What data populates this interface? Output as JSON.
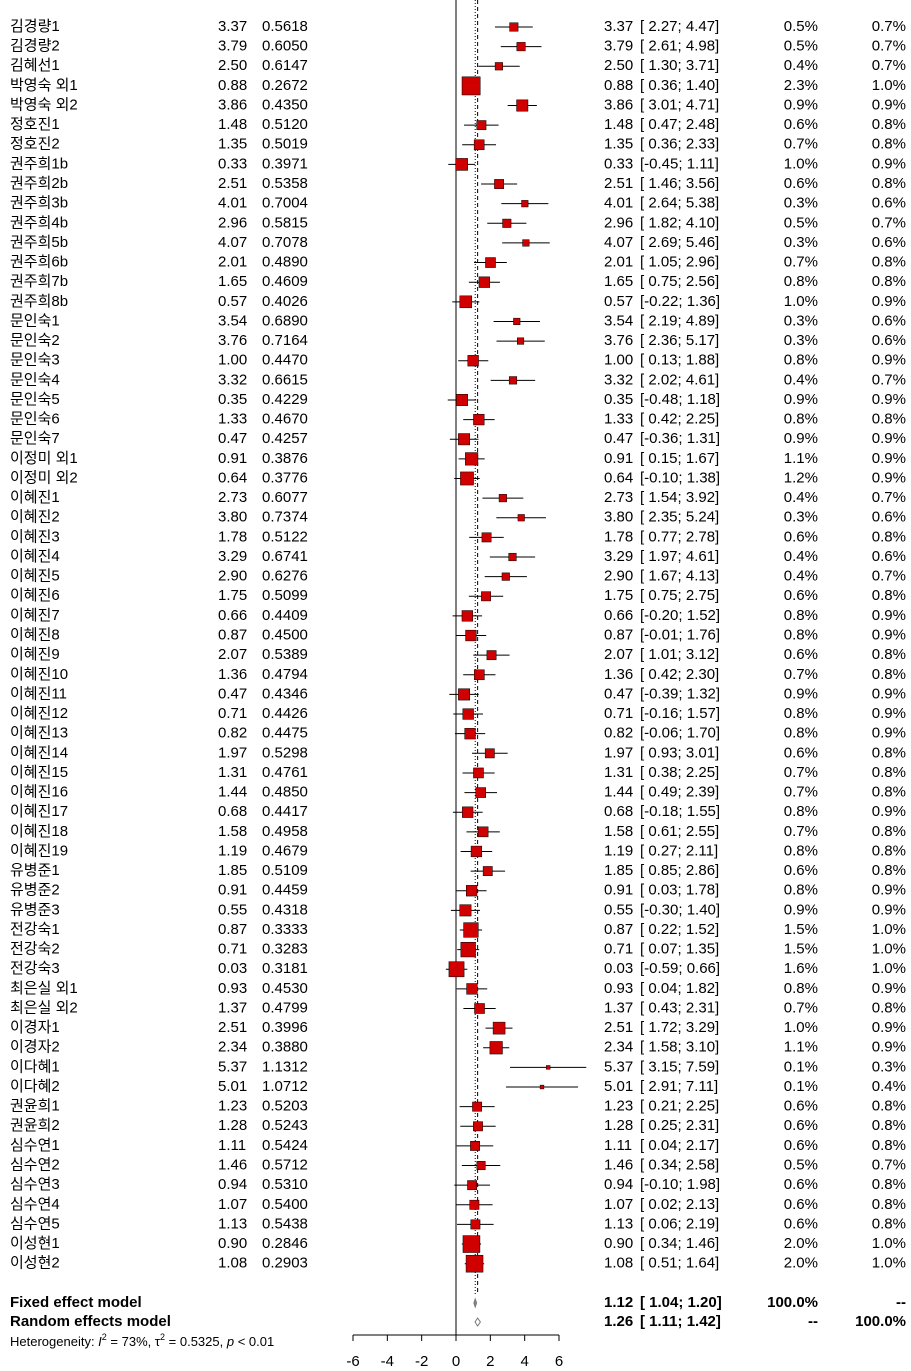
{
  "chart_data": {
    "type": "forest",
    "xlim": [
      -6,
      6
    ],
    "xticks": [
      -6,
      -4,
      -2,
      0,
      2,
      4,
      6
    ],
    "color": "#d00000",
    "rows": [
      {
        "name": "김경량1",
        "te": 3.37,
        "te_label": "3.37",
        "se": "0.5618",
        "lower": 2.27,
        "upper": 4.47,
        "ci": "[ 2.27; 4.47]",
        "w_fixed": 0.5,
        "w_fixed_label": "0.5%",
        "w_random": "0.7%"
      },
      {
        "name": "김경량2",
        "te": 3.79,
        "te_label": "3.79",
        "se": "0.6050",
        "lower": 2.61,
        "upper": 4.98,
        "ci": "[ 2.61; 4.98]",
        "w_fixed": 0.5,
        "w_fixed_label": "0.5%",
        "w_random": "0.7%"
      },
      {
        "name": "김혜선1",
        "te": 2.5,
        "te_label": "2.50",
        "se": "0.6147",
        "lower": 1.3,
        "upper": 3.71,
        "ci": "[ 1.30; 3.71]",
        "w_fixed": 0.4,
        "w_fixed_label": "0.4%",
        "w_random": "0.7%"
      },
      {
        "name": "박영숙 외1",
        "te": 0.88,
        "te_label": "0.88",
        "se": "0.2672",
        "lower": 0.36,
        "upper": 1.4,
        "ci": "[ 0.36; 1.40]",
        "w_fixed": 2.3,
        "w_fixed_label": "2.3%",
        "w_random": "1.0%"
      },
      {
        "name": "박영숙 외2",
        "te": 3.86,
        "te_label": "3.86",
        "se": "0.4350",
        "lower": 3.01,
        "upper": 4.71,
        "ci": "[ 3.01; 4.71]",
        "w_fixed": 0.9,
        "w_fixed_label": "0.9%",
        "w_random": "0.9%"
      },
      {
        "name": "정호진1",
        "te": 1.48,
        "te_label": "1.48",
        "se": "0.5120",
        "lower": 0.47,
        "upper": 2.48,
        "ci": "[ 0.47; 2.48]",
        "w_fixed": 0.6,
        "w_fixed_label": "0.6%",
        "w_random": "0.8%"
      },
      {
        "name": "정호진2",
        "te": 1.35,
        "te_label": "1.35",
        "se": "0.5019",
        "lower": 0.36,
        "upper": 2.33,
        "ci": "[ 0.36; 2.33]",
        "w_fixed": 0.7,
        "w_fixed_label": "0.7%",
        "w_random": "0.8%"
      },
      {
        "name": "권주희1b",
        "te": 0.33,
        "te_label": "0.33",
        "se": "0.3971",
        "lower": -0.45,
        "upper": 1.11,
        "ci": "[-0.45; 1.11]",
        "w_fixed": 1.0,
        "w_fixed_label": "1.0%",
        "w_random": "0.9%"
      },
      {
        "name": "권주희2b",
        "te": 2.51,
        "te_label": "2.51",
        "se": "0.5358",
        "lower": 1.46,
        "upper": 3.56,
        "ci": "[ 1.46; 3.56]",
        "w_fixed": 0.6,
        "w_fixed_label": "0.6%",
        "w_random": "0.8%"
      },
      {
        "name": "권주희3b",
        "te": 4.01,
        "te_label": "4.01",
        "se": "0.7004",
        "lower": 2.64,
        "upper": 5.38,
        "ci": "[ 2.64; 5.38]",
        "w_fixed": 0.3,
        "w_fixed_label": "0.3%",
        "w_random": "0.6%"
      },
      {
        "name": "권주희4b",
        "te": 2.96,
        "te_label": "2.96",
        "se": "0.5815",
        "lower": 1.82,
        "upper": 4.1,
        "ci": "[ 1.82; 4.10]",
        "w_fixed": 0.5,
        "w_fixed_label": "0.5%",
        "w_random": "0.7%"
      },
      {
        "name": "권주희5b",
        "te": 4.07,
        "te_label": "4.07",
        "se": "0.7078",
        "lower": 2.69,
        "upper": 5.46,
        "ci": "[ 2.69; 5.46]",
        "w_fixed": 0.3,
        "w_fixed_label": "0.3%",
        "w_random": "0.6%"
      },
      {
        "name": "권주희6b",
        "te": 2.01,
        "te_label": "2.01",
        "se": "0.4890",
        "lower": 1.05,
        "upper": 2.96,
        "ci": "[ 1.05; 2.96]",
        "w_fixed": 0.7,
        "w_fixed_label": "0.7%",
        "w_random": "0.8%"
      },
      {
        "name": "권주희7b",
        "te": 1.65,
        "te_label": "1.65",
        "se": "0.4609",
        "lower": 0.75,
        "upper": 2.56,
        "ci": "[ 0.75; 2.56]",
        "w_fixed": 0.8,
        "w_fixed_label": "0.8%",
        "w_random": "0.8%"
      },
      {
        "name": "권주희8b",
        "te": 0.57,
        "te_label": "0.57",
        "se": "0.4026",
        "lower": -0.22,
        "upper": 1.36,
        "ci": "[-0.22; 1.36]",
        "w_fixed": 1.0,
        "w_fixed_label": "1.0%",
        "w_random": "0.9%"
      },
      {
        "name": "문인숙1",
        "te": 3.54,
        "te_label": "3.54",
        "se": "0.6890",
        "lower": 2.19,
        "upper": 4.89,
        "ci": "[ 2.19; 4.89]",
        "w_fixed": 0.3,
        "w_fixed_label": "0.3%",
        "w_random": "0.6%"
      },
      {
        "name": "문인숙2",
        "te": 3.76,
        "te_label": "3.76",
        "se": "0.7164",
        "lower": 2.36,
        "upper": 5.17,
        "ci": "[ 2.36; 5.17]",
        "w_fixed": 0.3,
        "w_fixed_label": "0.3%",
        "w_random": "0.6%"
      },
      {
        "name": "문인숙3",
        "te": 1.0,
        "te_label": "1.00",
        "se": "0.4470",
        "lower": 0.13,
        "upper": 1.88,
        "ci": "[ 0.13; 1.88]",
        "w_fixed": 0.8,
        "w_fixed_label": "0.8%",
        "w_random": "0.9%"
      },
      {
        "name": "문인숙4",
        "te": 3.32,
        "te_label": "3.32",
        "se": "0.6615",
        "lower": 2.02,
        "upper": 4.61,
        "ci": "[ 2.02; 4.61]",
        "w_fixed": 0.4,
        "w_fixed_label": "0.4%",
        "w_random": "0.7%"
      },
      {
        "name": "문인숙5",
        "te": 0.35,
        "te_label": "0.35",
        "se": "0.4229",
        "lower": -0.48,
        "upper": 1.18,
        "ci": "[-0.48; 1.18]",
        "w_fixed": 0.9,
        "w_fixed_label": "0.9%",
        "w_random": "0.9%"
      },
      {
        "name": "문인숙6",
        "te": 1.33,
        "te_label": "1.33",
        "se": "0.4670",
        "lower": 0.42,
        "upper": 2.25,
        "ci": "[ 0.42; 2.25]",
        "w_fixed": 0.8,
        "w_fixed_label": "0.8%",
        "w_random": "0.8%"
      },
      {
        "name": "문인숙7",
        "te": 0.47,
        "te_label": "0.47",
        "se": "0.4257",
        "lower": -0.36,
        "upper": 1.31,
        "ci": "[-0.36; 1.31]",
        "w_fixed": 0.9,
        "w_fixed_label": "0.9%",
        "w_random": "0.9%"
      },
      {
        "name": "이정미 외1",
        "te": 0.91,
        "te_label": "0.91",
        "se": "0.3876",
        "lower": 0.15,
        "upper": 1.67,
        "ci": "[ 0.15; 1.67]",
        "w_fixed": 1.1,
        "w_fixed_label": "1.1%",
        "w_random": "0.9%"
      },
      {
        "name": "이정미 외2",
        "te": 0.64,
        "te_label": "0.64",
        "se": "0.3776",
        "lower": -0.1,
        "upper": 1.38,
        "ci": "[-0.10; 1.38]",
        "w_fixed": 1.2,
        "w_fixed_label": "1.2%",
        "w_random": "0.9%"
      },
      {
        "name": "이혜진1",
        "te": 2.73,
        "te_label": "2.73",
        "se": "0.6077",
        "lower": 1.54,
        "upper": 3.92,
        "ci": "[ 1.54; 3.92]",
        "w_fixed": 0.4,
        "w_fixed_label": "0.4%",
        "w_random": "0.7%"
      },
      {
        "name": "이혜진2",
        "te": 3.8,
        "te_label": "3.80",
        "se": "0.7374",
        "lower": 2.35,
        "upper": 5.24,
        "ci": "[ 2.35; 5.24]",
        "w_fixed": 0.3,
        "w_fixed_label": "0.3%",
        "w_random": "0.6%"
      },
      {
        "name": "이혜진3",
        "te": 1.78,
        "te_label": "1.78",
        "se": "0.5122",
        "lower": 0.77,
        "upper": 2.78,
        "ci": "[ 0.77; 2.78]",
        "w_fixed": 0.6,
        "w_fixed_label": "0.6%",
        "w_random": "0.8%"
      },
      {
        "name": "이혜진4",
        "te": 3.29,
        "te_label": "3.29",
        "se": "0.6741",
        "lower": 1.97,
        "upper": 4.61,
        "ci": "[ 1.97; 4.61]",
        "w_fixed": 0.4,
        "w_fixed_label": "0.4%",
        "w_random": "0.6%"
      },
      {
        "name": "이혜진5",
        "te": 2.9,
        "te_label": "2.90",
        "se": "0.6276",
        "lower": 1.67,
        "upper": 4.13,
        "ci": "[ 1.67; 4.13]",
        "w_fixed": 0.4,
        "w_fixed_label": "0.4%",
        "w_random": "0.7%"
      },
      {
        "name": "이혜진6",
        "te": 1.75,
        "te_label": "1.75",
        "se": "0.5099",
        "lower": 0.75,
        "upper": 2.75,
        "ci": "[ 0.75; 2.75]",
        "w_fixed": 0.6,
        "w_fixed_label": "0.6%",
        "w_random": "0.8%"
      },
      {
        "name": "이혜진7",
        "te": 0.66,
        "te_label": "0.66",
        "se": "0.4409",
        "lower": -0.2,
        "upper": 1.52,
        "ci": "[-0.20; 1.52]",
        "w_fixed": 0.8,
        "w_fixed_label": "0.8%",
        "w_random": "0.9%"
      },
      {
        "name": "이혜진8",
        "te": 0.87,
        "te_label": "0.87",
        "se": "0.4500",
        "lower": -0.01,
        "upper": 1.76,
        "ci": "[-0.01; 1.76]",
        "w_fixed": 0.8,
        "w_fixed_label": "0.8%",
        "w_random": "0.9%"
      },
      {
        "name": "이혜진9",
        "te": 2.07,
        "te_label": "2.07",
        "se": "0.5389",
        "lower": 1.01,
        "upper": 3.12,
        "ci": "[ 1.01; 3.12]",
        "w_fixed": 0.6,
        "w_fixed_label": "0.6%",
        "w_random": "0.8%"
      },
      {
        "name": "이혜진10",
        "te": 1.36,
        "te_label": "1.36",
        "se": "0.4794",
        "lower": 0.42,
        "upper": 2.3,
        "ci": "[ 0.42; 2.30]",
        "w_fixed": 0.7,
        "w_fixed_label": "0.7%",
        "w_random": "0.8%"
      },
      {
        "name": "이혜진11",
        "te": 0.47,
        "te_label": "0.47",
        "se": "0.4346",
        "lower": -0.39,
        "upper": 1.32,
        "ci": "[-0.39; 1.32]",
        "w_fixed": 0.9,
        "w_fixed_label": "0.9%",
        "w_random": "0.9%"
      },
      {
        "name": "이혜진12",
        "te": 0.71,
        "te_label": "0.71",
        "se": "0.4426",
        "lower": -0.16,
        "upper": 1.57,
        "ci": "[-0.16; 1.57]",
        "w_fixed": 0.8,
        "w_fixed_label": "0.8%",
        "w_random": "0.9%"
      },
      {
        "name": "이혜진13",
        "te": 0.82,
        "te_label": "0.82",
        "se": "0.4475",
        "lower": -0.06,
        "upper": 1.7,
        "ci": "[-0.06; 1.70]",
        "w_fixed": 0.8,
        "w_fixed_label": "0.8%",
        "w_random": "0.9%"
      },
      {
        "name": "이혜진14",
        "te": 1.97,
        "te_label": "1.97",
        "se": "0.5298",
        "lower": 0.93,
        "upper": 3.01,
        "ci": "[ 0.93; 3.01]",
        "w_fixed": 0.6,
        "w_fixed_label": "0.6%",
        "w_random": "0.8%"
      },
      {
        "name": "이혜진15",
        "te": 1.31,
        "te_label": "1.31",
        "se": "0.4761",
        "lower": 0.38,
        "upper": 2.25,
        "ci": "[ 0.38; 2.25]",
        "w_fixed": 0.7,
        "w_fixed_label": "0.7%",
        "w_random": "0.8%"
      },
      {
        "name": "이혜진16",
        "te": 1.44,
        "te_label": "1.44",
        "se": "0.4850",
        "lower": 0.49,
        "upper": 2.39,
        "ci": "[ 0.49; 2.39]",
        "w_fixed": 0.7,
        "w_fixed_label": "0.7%",
        "w_random": "0.8%"
      },
      {
        "name": "이혜진17",
        "te": 0.68,
        "te_label": "0.68",
        "se": "0.4417",
        "lower": -0.18,
        "upper": 1.55,
        "ci": "[-0.18; 1.55]",
        "w_fixed": 0.8,
        "w_fixed_label": "0.8%",
        "w_random": "0.9%"
      },
      {
        "name": "이혜진18",
        "te": 1.58,
        "te_label": "1.58",
        "se": "0.4958",
        "lower": 0.61,
        "upper": 2.55,
        "ci": "[ 0.61; 2.55]",
        "w_fixed": 0.7,
        "w_fixed_label": "0.7%",
        "w_random": "0.8%"
      },
      {
        "name": "이혜진19",
        "te": 1.19,
        "te_label": "1.19",
        "se": "0.4679",
        "lower": 0.27,
        "upper": 2.11,
        "ci": "[ 0.27; 2.11]",
        "w_fixed": 0.8,
        "w_fixed_label": "0.8%",
        "w_random": "0.8%"
      },
      {
        "name": "유병준1",
        "te": 1.85,
        "te_label": "1.85",
        "se": "0.5109",
        "lower": 0.85,
        "upper": 2.86,
        "ci": "[ 0.85; 2.86]",
        "w_fixed": 0.6,
        "w_fixed_label": "0.6%",
        "w_random": "0.8%"
      },
      {
        "name": "유병준2",
        "te": 0.91,
        "te_label": "0.91",
        "se": "0.4459",
        "lower": 0.03,
        "upper": 1.78,
        "ci": "[ 0.03; 1.78]",
        "w_fixed": 0.8,
        "w_fixed_label": "0.8%",
        "w_random": "0.9%"
      },
      {
        "name": "유병준3",
        "te": 0.55,
        "te_label": "0.55",
        "se": "0.4318",
        "lower": -0.3,
        "upper": 1.4,
        "ci": "[-0.30; 1.40]",
        "w_fixed": 0.9,
        "w_fixed_label": "0.9%",
        "w_random": "0.9%"
      },
      {
        "name": "전강숙1",
        "te": 0.87,
        "te_label": "0.87",
        "se": "0.3333",
        "lower": 0.22,
        "upper": 1.52,
        "ci": "[ 0.22; 1.52]",
        "w_fixed": 1.5,
        "w_fixed_label": "1.5%",
        "w_random": "1.0%"
      },
      {
        "name": "전강숙2",
        "te": 0.71,
        "te_label": "0.71",
        "se": "0.3283",
        "lower": 0.07,
        "upper": 1.35,
        "ci": "[ 0.07; 1.35]",
        "w_fixed": 1.5,
        "w_fixed_label": "1.5%",
        "w_random": "1.0%"
      },
      {
        "name": "전강숙3",
        "te": 0.03,
        "te_label": "0.03",
        "se": "0.3181",
        "lower": -0.59,
        "upper": 0.66,
        "ci": "[-0.59; 0.66]",
        "w_fixed": 1.6,
        "w_fixed_label": "1.6%",
        "w_random": "1.0%"
      },
      {
        "name": "최은실 외1",
        "te": 0.93,
        "te_label": "0.93",
        "se": "0.4530",
        "lower": 0.04,
        "upper": 1.82,
        "ci": "[ 0.04; 1.82]",
        "w_fixed": 0.8,
        "w_fixed_label": "0.8%",
        "w_random": "0.9%"
      },
      {
        "name": "최은실 외2",
        "te": 1.37,
        "te_label": "1.37",
        "se": "0.4799",
        "lower": 0.43,
        "upper": 2.31,
        "ci": "[ 0.43; 2.31]",
        "w_fixed": 0.7,
        "w_fixed_label": "0.7%",
        "w_random": "0.8%"
      },
      {
        "name": "이경자1",
        "te": 2.51,
        "te_label": "2.51",
        "se": "0.3996",
        "lower": 1.72,
        "upper": 3.29,
        "ci": "[ 1.72; 3.29]",
        "w_fixed": 1.0,
        "w_fixed_label": "1.0%",
        "w_random": "0.9%"
      },
      {
        "name": "이경자2",
        "te": 2.34,
        "te_label": "2.34",
        "se": "0.3880",
        "lower": 1.58,
        "upper": 3.1,
        "ci": "[ 1.58; 3.10]",
        "w_fixed": 1.1,
        "w_fixed_label": "1.1%",
        "w_random": "0.9%"
      },
      {
        "name": "이다혜1",
        "te": 5.37,
        "te_label": "5.37",
        "se": "1.1312",
        "lower": 3.15,
        "upper": 7.59,
        "ci": "[ 3.15; 7.59]",
        "w_fixed": 0.1,
        "w_fixed_label": "0.1%",
        "w_random": "0.3%"
      },
      {
        "name": "이다혜2",
        "te": 5.01,
        "te_label": "5.01",
        "se": "1.0712",
        "lower": 2.91,
        "upper": 7.11,
        "ci": "[ 2.91; 7.11]",
        "w_fixed": 0.1,
        "w_fixed_label": "0.1%",
        "w_random": "0.4%"
      },
      {
        "name": "권윤희1",
        "te": 1.23,
        "te_label": "1.23",
        "se": "0.5203",
        "lower": 0.21,
        "upper": 2.25,
        "ci": "[ 0.21; 2.25]",
        "w_fixed": 0.6,
        "w_fixed_label": "0.6%",
        "w_random": "0.8%"
      },
      {
        "name": "권윤희2",
        "te": 1.28,
        "te_label": "1.28",
        "se": "0.5243",
        "lower": 0.25,
        "upper": 2.31,
        "ci": "[ 0.25; 2.31]",
        "w_fixed": 0.6,
        "w_fixed_label": "0.6%",
        "w_random": "0.8%"
      },
      {
        "name": "심수연1",
        "te": 1.11,
        "te_label": "1.11",
        "se": "0.5424",
        "lower": 0.04,
        "upper": 2.17,
        "ci": "[ 0.04; 2.17]",
        "w_fixed": 0.6,
        "w_fixed_label": "0.6%",
        "w_random": "0.8%"
      },
      {
        "name": "심수연2",
        "te": 1.46,
        "te_label": "1.46",
        "se": "0.5712",
        "lower": 0.34,
        "upper": 2.58,
        "ci": "[ 0.34; 2.58]",
        "w_fixed": 0.5,
        "w_fixed_label": "0.5%",
        "w_random": "0.7%"
      },
      {
        "name": "심수연3",
        "te": 0.94,
        "te_label": "0.94",
        "se": "0.5310",
        "lower": -0.1,
        "upper": 1.98,
        "ci": "[-0.10; 1.98]",
        "w_fixed": 0.6,
        "w_fixed_label": "0.6%",
        "w_random": "0.8%"
      },
      {
        "name": "심수연4",
        "te": 1.07,
        "te_label": "1.07",
        "se": "0.5400",
        "lower": 0.02,
        "upper": 2.13,
        "ci": "[ 0.02; 2.13]",
        "w_fixed": 0.6,
        "w_fixed_label": "0.6%",
        "w_random": "0.8%"
      },
      {
        "name": "심수연5",
        "te": 1.13,
        "te_label": "1.13",
        "se": "0.5438",
        "lower": 0.06,
        "upper": 2.19,
        "ci": "[ 0.06; 2.19]",
        "w_fixed": 0.6,
        "w_fixed_label": "0.6%",
        "w_random": "0.8%"
      },
      {
        "name": "이성현1",
        "te": 0.9,
        "te_label": "0.90",
        "se": "0.2846",
        "lower": 0.34,
        "upper": 1.46,
        "ci": "[ 0.34; 1.46]",
        "w_fixed": 2.0,
        "w_fixed_label": "2.0%",
        "w_random": "1.0%"
      },
      {
        "name": "이성현2",
        "te": 1.08,
        "te_label": "1.08",
        "se": "0.2903",
        "lower": 0.51,
        "upper": 1.64,
        "ci": "[ 0.51; 1.64]",
        "w_fixed": 2.0,
        "w_fixed_label": "2.0%",
        "w_random": "1.0%"
      }
    ],
    "summaries": [
      {
        "name": "Fixed effect model",
        "te": 1.12,
        "te_label": "1.12",
        "lower": 1.04,
        "upper": 1.2,
        "ci": "[ 1.04; 1.20]",
        "w_fixed": "100.0%",
        "w_random": "--",
        "line": "dotted"
      },
      {
        "name": "Random effects model",
        "te": 1.26,
        "te_label": "1.26",
        "lower": 1.11,
        "upper": 1.42,
        "ci": "[ 1.11; 1.42]",
        "w_fixed": "--",
        "w_random": "100.0%",
        "line": "dashed"
      }
    ],
    "heterogeneity": [
      "Heterogeneity: ",
      "I",
      "2",
      " = 73%, ",
      "τ",
      "2",
      " = 0.5325, ",
      "p",
      " < 0.01"
    ]
  }
}
